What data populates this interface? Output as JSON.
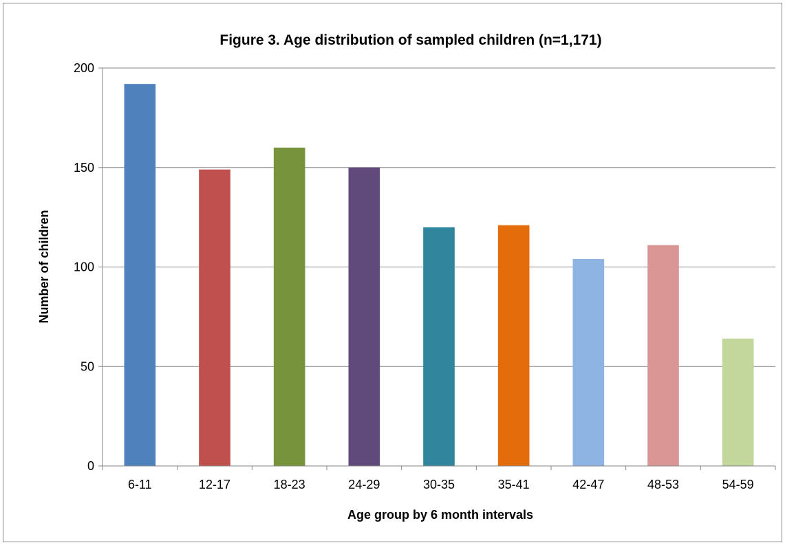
{
  "chart_data": {
    "type": "bar",
    "title": "Figure 3. Age distribution of sampled children (n=1,171)",
    "xlabel": "Age group by 6 month intervals",
    "ylabel": "Number of children",
    "categories": [
      "6-11",
      "12-17",
      "18-23",
      "24-29",
      "30-35",
      "35-41",
      "42-47",
      "48-53",
      "54-59"
    ],
    "values": [
      192,
      149,
      160,
      150,
      120,
      121,
      104,
      111,
      64
    ],
    "colors": [
      "#4F81BD",
      "#C0504D",
      "#77933C",
      "#604A7B",
      "#31859C",
      "#E46C0A",
      "#8EB4E3",
      "#D99694",
      "#C3D69B"
    ],
    "ylim": [
      0,
      200
    ],
    "yticks": [
      0,
      50,
      100,
      150,
      200
    ],
    "grid": true,
    "legend": "none"
  }
}
